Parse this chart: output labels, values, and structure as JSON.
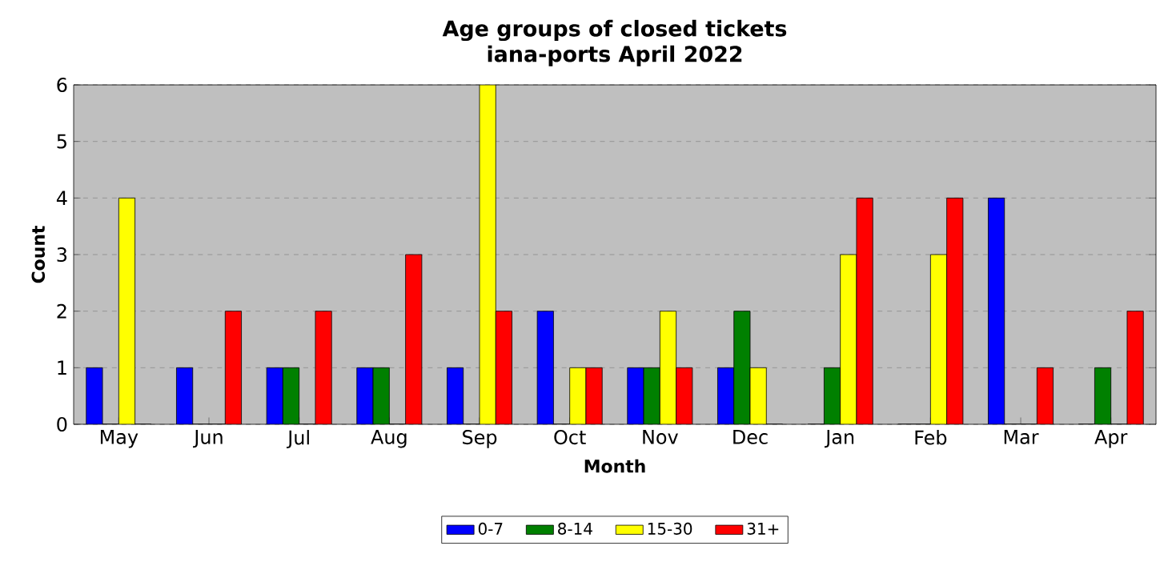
{
  "chart_data": {
    "type": "bar",
    "title": "Age groups of closed tickets",
    "subtitle": "iana-ports April 2022",
    "xlabel": "Month",
    "ylabel": "Count",
    "categories": [
      "May",
      "Jun",
      "Jul",
      "Aug",
      "Sep",
      "Oct",
      "Nov",
      "Dec",
      "Jan",
      "Feb",
      "Mar",
      "Apr"
    ],
    "series": [
      {
        "name": "0-7",
        "color": "#0000ff",
        "values": [
          1,
          1,
          1,
          1,
          1,
          2,
          1,
          1,
          0,
          0,
          4,
          0
        ]
      },
      {
        "name": "8-14",
        "color": "#008000",
        "values": [
          0,
          0,
          1,
          1,
          0,
          0,
          1,
          2,
          1,
          0,
          0,
          1
        ]
      },
      {
        "name": "15-30",
        "color": "#ffff00",
        "values": [
          4,
          0,
          0,
          0,
          6,
          1,
          2,
          1,
          3,
          3,
          0,
          0
        ]
      },
      {
        "name": "31+",
        "color": "#ff0000",
        "values": [
          0,
          2,
          2,
          3,
          2,
          1,
          1,
          0,
          4,
          4,
          1,
          2
        ]
      }
    ],
    "ylim": [
      0,
      6
    ],
    "yticks": [
      0,
      1,
      2,
      3,
      4,
      5,
      6
    ],
    "grid": "y",
    "legend": "bottom"
  }
}
